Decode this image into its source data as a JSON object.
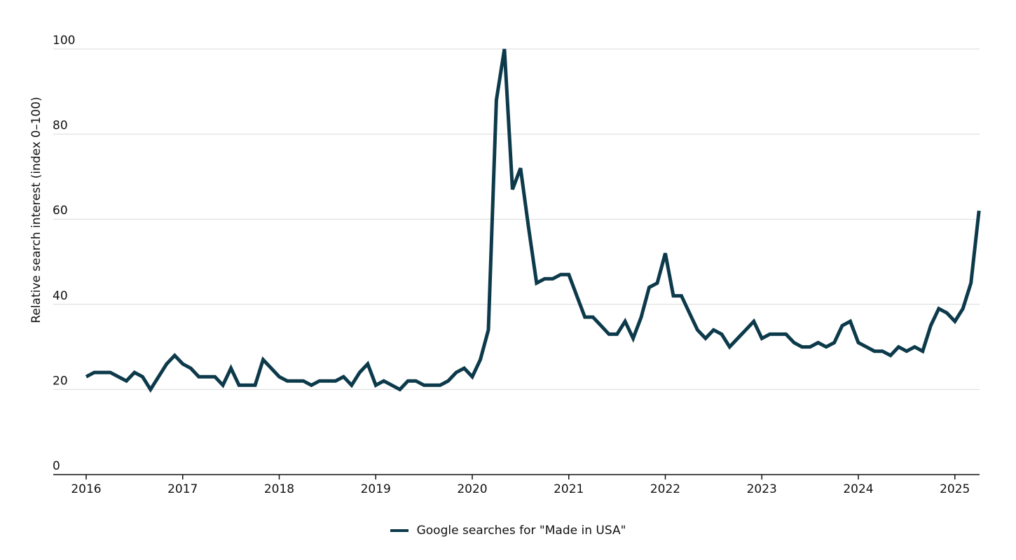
{
  "chart_data": {
    "type": "line",
    "ylabel": "Relative search interest (index 0–100)",
    "xlabel": "",
    "ylim": [
      0,
      100
    ],
    "yticks": [
      0,
      20,
      40,
      60,
      80,
      100
    ],
    "xlim": [
      "2016-01",
      "2025-04"
    ],
    "xticks": [
      "2016",
      "2017",
      "2018",
      "2019",
      "2020",
      "2021",
      "2022",
      "2023",
      "2024",
      "2025"
    ],
    "grid": "horizontal",
    "legend_position": "bottom-center",
    "series": [
      {
        "name": "Google searches for \"Made in USA\"",
        "color": "#0d3a4b",
        "x": [
          "2016-01",
          "2016-02",
          "2016-03",
          "2016-04",
          "2016-05",
          "2016-06",
          "2016-07",
          "2016-08",
          "2016-09",
          "2016-10",
          "2016-11",
          "2016-12",
          "2017-01",
          "2017-02",
          "2017-03",
          "2017-04",
          "2017-05",
          "2017-06",
          "2017-07",
          "2017-08",
          "2017-09",
          "2017-10",
          "2017-11",
          "2017-12",
          "2018-01",
          "2018-02",
          "2018-03",
          "2018-04",
          "2018-05",
          "2018-06",
          "2018-07",
          "2018-08",
          "2018-09",
          "2018-10",
          "2018-11",
          "2018-12",
          "2019-01",
          "2019-02",
          "2019-03",
          "2019-04",
          "2019-05",
          "2019-06",
          "2019-07",
          "2019-08",
          "2019-09",
          "2019-10",
          "2019-11",
          "2019-12",
          "2020-01",
          "2020-02",
          "2020-03",
          "2020-04",
          "2020-05",
          "2020-06",
          "2020-07",
          "2020-08",
          "2020-09",
          "2020-10",
          "2020-11",
          "2020-12",
          "2021-01",
          "2021-02",
          "2021-03",
          "2021-04",
          "2021-05",
          "2021-06",
          "2021-07",
          "2021-08",
          "2021-09",
          "2021-10",
          "2021-11",
          "2021-12",
          "2022-01",
          "2022-02",
          "2022-03",
          "2022-04",
          "2022-05",
          "2022-06",
          "2022-07",
          "2022-08",
          "2022-09",
          "2022-10",
          "2022-11",
          "2022-12",
          "2023-01",
          "2023-02",
          "2023-03",
          "2023-04",
          "2023-05",
          "2023-06",
          "2023-07",
          "2023-08",
          "2023-09",
          "2023-10",
          "2023-11",
          "2023-12",
          "2024-01",
          "2024-02",
          "2024-03",
          "2024-04",
          "2024-05",
          "2024-06",
          "2024-07",
          "2024-08",
          "2024-09",
          "2024-10",
          "2024-11",
          "2024-12",
          "2025-01",
          "2025-02",
          "2025-03",
          "2025-04"
        ],
        "values": [
          23,
          24,
          24,
          24,
          23,
          22,
          24,
          23,
          20,
          23,
          26,
          28,
          26,
          25,
          23,
          23,
          23,
          21,
          25,
          21,
          21,
          21,
          27,
          25,
          23,
          22,
          22,
          22,
          21,
          22,
          22,
          22,
          23,
          21,
          24,
          26,
          21,
          22,
          21,
          20,
          22,
          22,
          21,
          21,
          21,
          22,
          24,
          25,
          23,
          27,
          34,
          88,
          100,
          67,
          72,
          58,
          45,
          46,
          46,
          47,
          47,
          42,
          37,
          37,
          35,
          33,
          33,
          36,
          32,
          37,
          44,
          45,
          52,
          42,
          42,
          38,
          34,
          32,
          34,
          33,
          30,
          32,
          34,
          36,
          32,
          33,
          33,
          33,
          31,
          30,
          30,
          31,
          30,
          31,
          35,
          36,
          31,
          30,
          29,
          29,
          28,
          30,
          29,
          30,
          29,
          35,
          39,
          38,
          36,
          39,
          45,
          62
        ]
      }
    ]
  }
}
